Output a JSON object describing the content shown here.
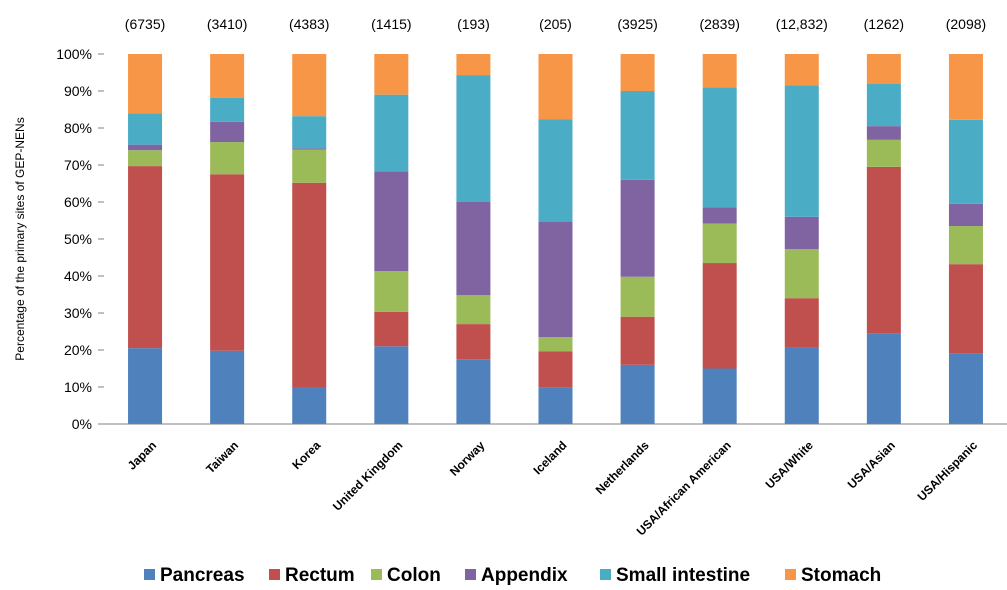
{
  "chart_data": {
    "type": "bar",
    "stacked": true,
    "title": "",
    "xlabel": "",
    "ylabel": "Percentage of the primary sites of GEP-NENs",
    "ylim": [
      0,
      100
    ],
    "yticks": [
      "0%",
      "10%",
      "20%",
      "30%",
      "40%",
      "50%",
      "60%",
      "70%",
      "80%",
      "90%",
      "100%"
    ],
    "grid": false,
    "legend_position": "bottom",
    "categories": [
      "Japan",
      "Taiwan",
      "Korea",
      "United Kingdom",
      "Norway",
      "Iceland",
      "Netherlands",
      "USA/African American",
      "USA/White",
      "USA/Asian",
      "USA/Hispanic"
    ],
    "counts": [
      "(6735)",
      "(3410)",
      "(4383)",
      "(1415)",
      "(193)",
      "(205)",
      "(3925)",
      "(2839)",
      "(12,832)",
      "(1262)",
      "(2098)"
    ],
    "series": [
      {
        "name": "Pancreas",
        "color": "#4f81bd",
        "values": [
          20.5,
          19.8,
          10.0,
          21.0,
          17.5,
          9.8,
          16.0,
          15.0,
          20.8,
          24.5,
          19.0
        ]
      },
      {
        "name": "Rectum",
        "color": "#c0504d",
        "values": [
          49.2,
          47.7,
          55.2,
          9.3,
          9.5,
          9.8,
          13.0,
          28.5,
          13.2,
          45.0,
          24.2
        ]
      },
      {
        "name": "Colon",
        "color": "#9bbb59",
        "values": [
          4.3,
          8.7,
          9.0,
          11.0,
          7.8,
          3.9,
          10.8,
          10.7,
          13.3,
          7.3,
          10.3
        ]
      },
      {
        "name": "Appendix",
        "color": "#8064a2",
        "values": [
          1.5,
          5.5,
          0.3,
          27.0,
          25.2,
          31.2,
          26.2,
          4.3,
          8.7,
          3.7,
          6.0
        ]
      },
      {
        "name": "Small intestine",
        "color": "#4bacc6",
        "values": [
          8.5,
          6.5,
          8.7,
          20.7,
          34.3,
          27.6,
          24.0,
          32.5,
          35.5,
          11.5,
          22.7
        ]
      },
      {
        "name": "Stomach",
        "color": "#f79646",
        "values": [
          16.0,
          11.8,
          16.8,
          11.0,
          5.7,
          17.7,
          10.0,
          9.0,
          8.5,
          8.0,
          17.8
        ]
      }
    ]
  }
}
